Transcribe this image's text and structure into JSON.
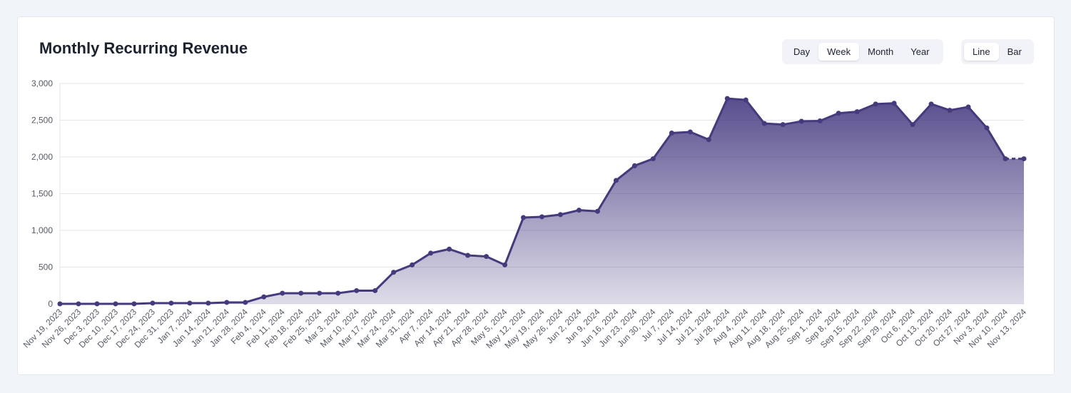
{
  "card": {
    "title": "Monthly Recurring Revenue"
  },
  "controls": {
    "range": [
      {
        "label": "Day",
        "active": false
      },
      {
        "label": "Week",
        "active": true
      },
      {
        "label": "Month",
        "active": false
      },
      {
        "label": "Year",
        "active": false
      }
    ],
    "chart_type": [
      {
        "label": "Line",
        "active": true
      },
      {
        "label": "Bar",
        "active": false
      }
    ]
  },
  "colors": {
    "line": "#463a7c",
    "fill_top": "#4b3f84",
    "grid": "#e3e5ea"
  },
  "chart_data": {
    "type": "area",
    "title": "",
    "xlabel": "",
    "ylabel": "",
    "ylim": [
      0,
      3000
    ],
    "yticks": [
      0,
      500,
      1000,
      1500,
      2000,
      2500,
      3000
    ],
    "ytick_labels": [
      "0",
      "500",
      "1,000",
      "1,500",
      "2,000",
      "2,500",
      "3,000"
    ],
    "grid": true,
    "legend": "none",
    "categories": [
      "Nov 19, 2023",
      "Nov 26, 2023",
      "Dec 3, 2023",
      "Dec 10, 2023",
      "Dec 17, 2023",
      "Dec 24, 2023",
      "Dec 31, 2023",
      "Jan 7, 2024",
      "Jan 14, 2024",
      "Jan 21, 2024",
      "Jan 28, 2024",
      "Feb 4, 2024",
      "Feb 11, 2024",
      "Feb 18, 2024",
      "Feb 25, 2024",
      "Mar 3, 2024",
      "Mar 10, 2024",
      "Mar 17, 2024",
      "Mar 24, 2024",
      "Mar 31, 2024",
      "Apr 7, 2024",
      "Apr 14, 2024",
      "Apr 21, 2024",
      "Apr 28, 2024",
      "May 5, 2024",
      "May 12, 2024",
      "May 19, 2024",
      "May 26, 2024",
      "Jun 2, 2024",
      "Jun 9, 2024",
      "Jun 16, 2024",
      "Jun 23, 2024",
      "Jun 30, 2024",
      "Jul 7, 2024",
      "Jul 14, 2024",
      "Jul 21, 2024",
      "Jul 28, 2024",
      "Aug 4, 2024",
      "Aug 11, 2024",
      "Aug 18, 2024",
      "Aug 25, 2024",
      "Sep 1, 2024",
      "Sep 8, 2024",
      "Sep 15, 2024",
      "Sep 22, 2024",
      "Sep 29, 2024",
      "Oct 6, 2024",
      "Oct 13, 2024",
      "Oct 20, 2024",
      "Oct 27, 2024",
      "Nov 3, 2024",
      "Nov 10, 2024",
      "Nov 13, 2024"
    ],
    "series": [
      {
        "values": [
          0,
          0,
          0,
          0,
          0,
          10,
          10,
          10,
          10,
          20,
          20,
          95,
          145,
          145,
          145,
          145,
          180,
          180,
          430,
          530,
          690,
          745,
          660,
          645,
          530,
          1175,
          1185,
          1215,
          1275,
          1260,
          1680,
          1880,
          1975,
          2325,
          2340,
          2235,
          2795,
          2775,
          2455,
          2440,
          2485,
          2490,
          2595,
          2615,
          2720,
          2730,
          2440,
          2720,
          2635,
          2680,
          2395,
          1975,
          1975
        ]
      }
    ]
  }
}
